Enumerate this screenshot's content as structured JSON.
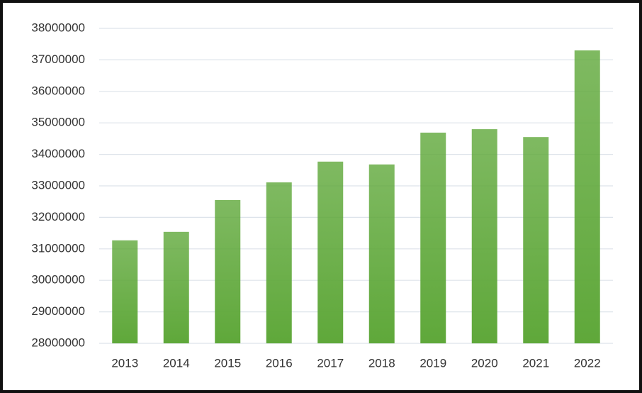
{
  "chart_data": {
    "type": "bar",
    "categories": [
      "2013",
      "2014",
      "2015",
      "2016",
      "2017",
      "2018",
      "2019",
      "2020",
      "2021",
      "2022"
    ],
    "values": [
      31270000,
      31540000,
      32550000,
      33110000,
      33770000,
      33680000,
      34690000,
      34800000,
      34550000,
      37300000
    ],
    "color": "#5fa83a",
    "ylim": [
      28000000,
      38000000
    ],
    "yticks": [
      28000000,
      29000000,
      30000000,
      31000000,
      32000000,
      33000000,
      34000000,
      35000000,
      36000000,
      37000000,
      38000000
    ],
    "grid": true
  }
}
